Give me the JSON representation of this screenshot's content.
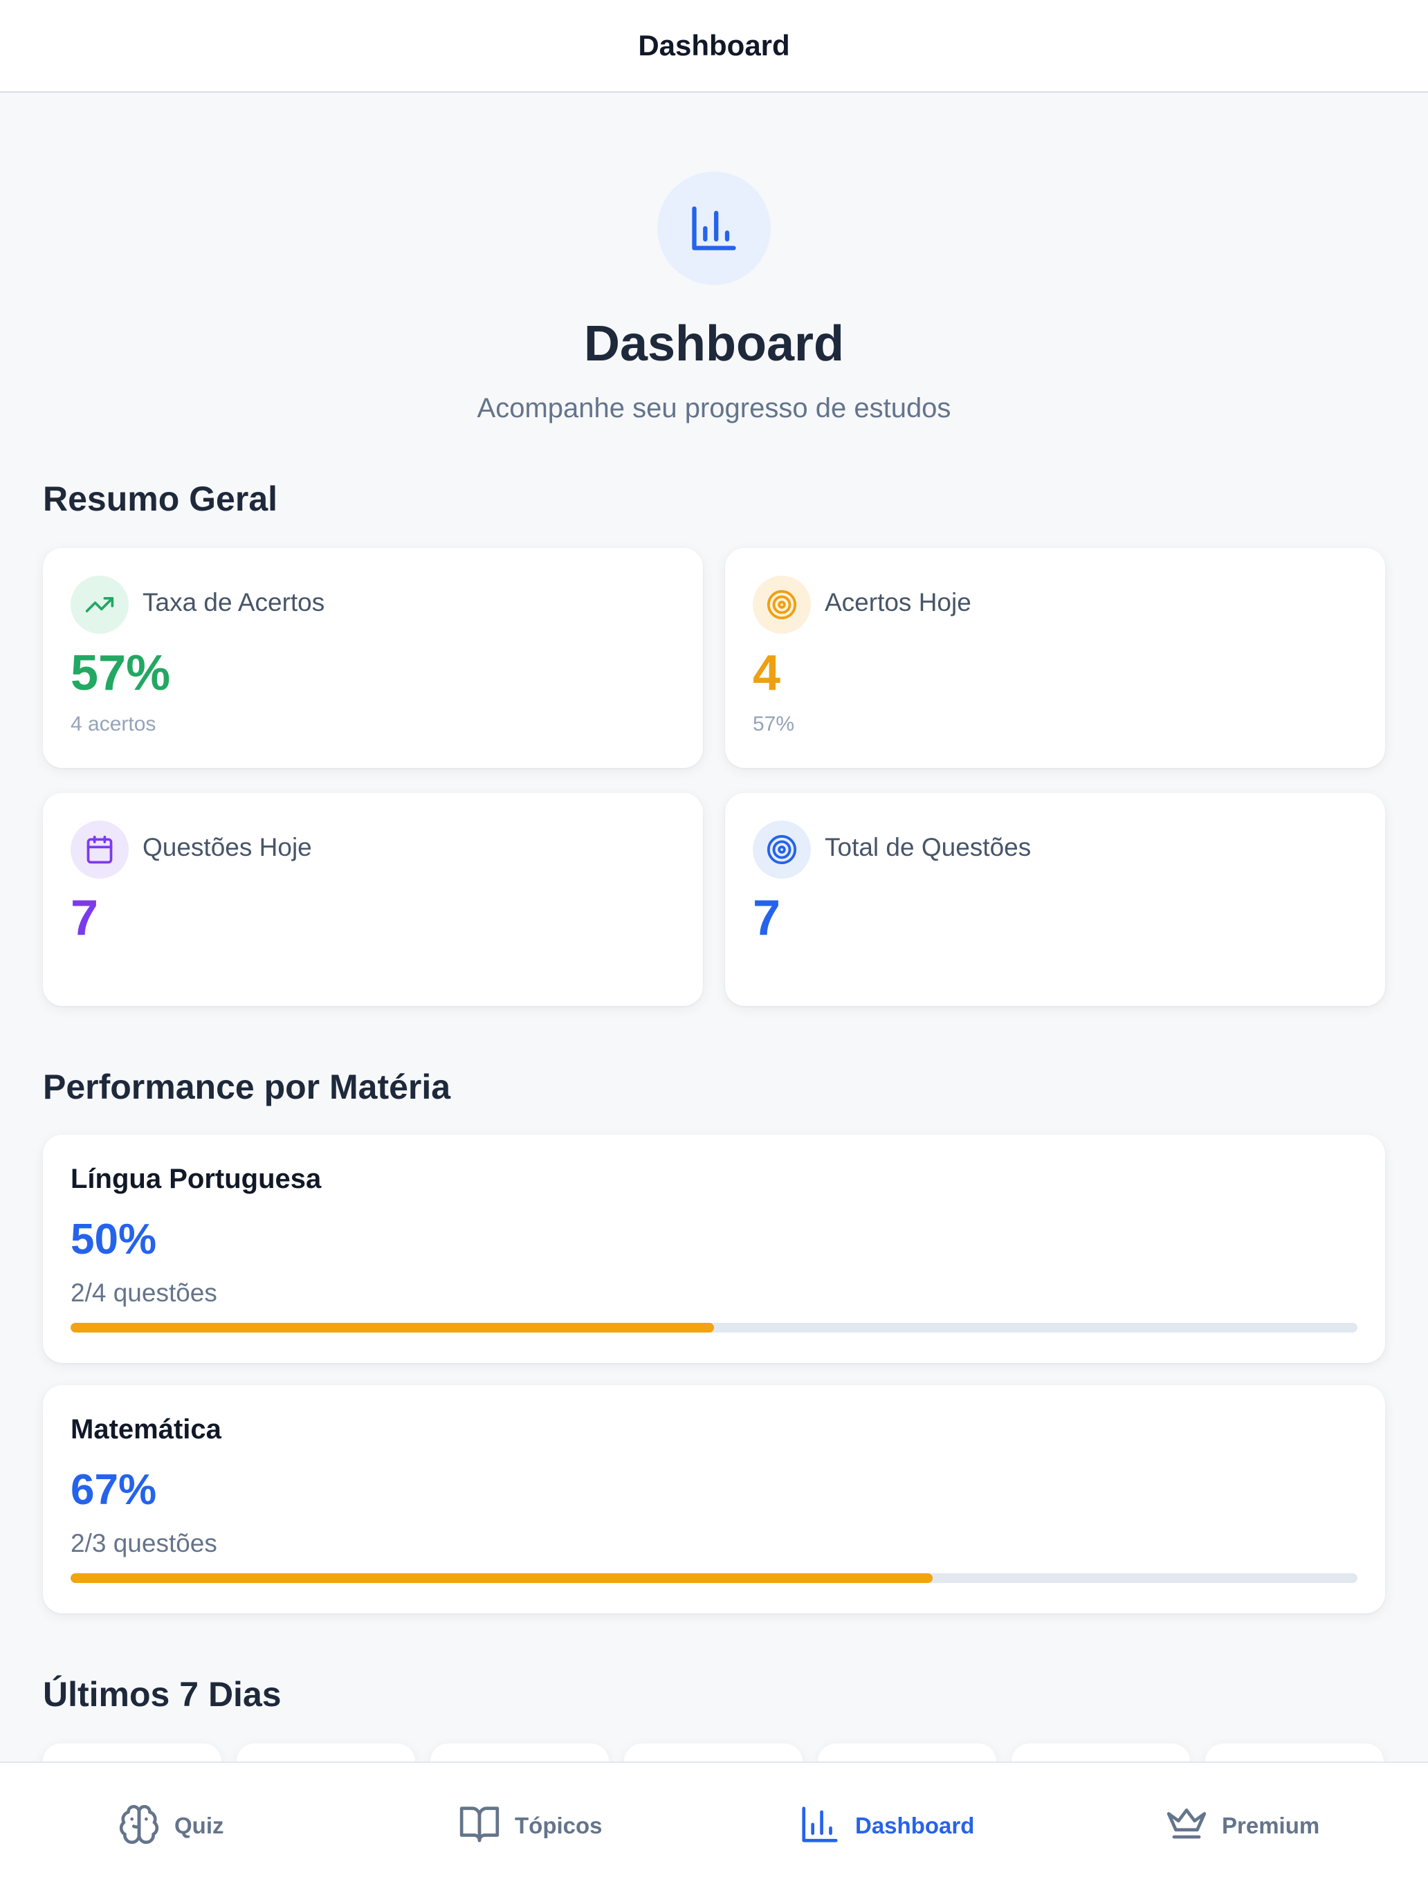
{
  "nav": {
    "title": "Dashboard"
  },
  "hero": {
    "icon": "bar-chart-icon",
    "title": "Dashboard",
    "subtitle": "Acompanhe seu progresso de estudos"
  },
  "sections": {
    "summary": "Resumo Geral",
    "performance": "Performance por Matéria",
    "last_days": "Últimos 7 Dias"
  },
  "stats": [
    {
      "icon": "trending-up-icon",
      "label": "Taxa de Acertos",
      "value": "57%",
      "sub": "4 acertos",
      "color": "#22a862",
      "icon_bg": "#e3f6ec"
    },
    {
      "icon": "target-icon",
      "label": "Acertos Hoje",
      "value": "4",
      "sub": "57%",
      "color": "#eea013",
      "icon_bg": "#fdf1dc"
    },
    {
      "icon": "calendar-icon",
      "label": "Questões Hoje",
      "value": "7",
      "sub": "",
      "color": "#7c3aed",
      "icon_bg": "#efe7fb"
    },
    {
      "icon": "target-icon",
      "label": "Total de Questões",
      "value": "7",
      "sub": "",
      "color": "#2563eb",
      "icon_bg": "#e6eefc"
    }
  ],
  "performance": [
    {
      "name": "Língua Portuguesa",
      "pct": "50%",
      "count": "2/4 questões",
      "progress": 0.5
    },
    {
      "name": "Matemática",
      "pct": "67%",
      "count": "2/3 questões",
      "progress": 0.67
    }
  ],
  "tabs": [
    {
      "icon": "brain-icon",
      "label": "Quiz",
      "active": false
    },
    {
      "icon": "book-open-icon",
      "label": "Tópicos",
      "active": false
    },
    {
      "icon": "bar-chart-icon",
      "label": "Dashboard",
      "active": true
    },
    {
      "icon": "crown-icon",
      "label": "Premium",
      "active": false
    }
  ],
  "colors": {
    "accent": "#2563eb",
    "progress": "#f2a30f",
    "track": "#e2e8f0",
    "background": "#f7f8fa"
  }
}
